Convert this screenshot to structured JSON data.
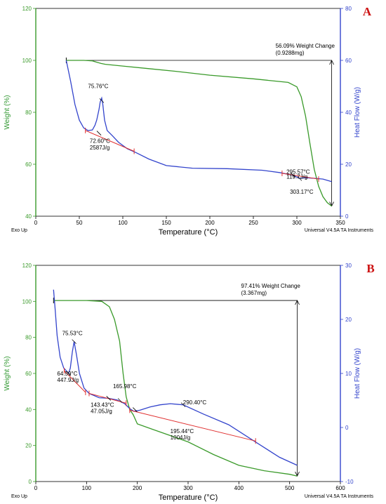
{
  "chart_data": [
    {
      "type": "line",
      "panel_label": "A",
      "xlabel": "Temperature (°C)",
      "ylabel_left": "Weight (%)",
      "ylabel_right": "Heat Flow (W/g)",
      "xlim": [
        0,
        350
      ],
      "x_ticks": [
        0,
        50,
        100,
        150,
        200,
        250,
        300,
        350
      ],
      "ylim_left": [
        40,
        120
      ],
      "y_ticks_left": [
        40,
        60,
        80,
        100,
        120
      ],
      "ylim_right": [
        0,
        80
      ],
      "y_ticks_right": [
        0,
        20,
        40,
        60,
        80
      ],
      "footer_left": "Exo Up",
      "footer_right": "Universal V4.5A TA Instruments",
      "weight_change_label": "56.09% Weight Change",
      "weight_change_sub": "(0.9288mg)",
      "weight_change_span": {
        "x": 340,
        "from": 100,
        "to": 43.91
      },
      "annotations": [
        {
          "text": "75.76°C",
          "x": 75.76,
          "y_hf": 44.5,
          "tx": 60,
          "ty_w": 89.3
        },
        {
          "text": "72.60°C",
          "x": 72.6,
          "y_hf": 32,
          "tx": 62,
          "ty_w": 68.2
        },
        {
          "text": "2587J/g",
          "x": 72.6,
          "y_hf": 32,
          "tx": 62,
          "ty_w": 65.7
        },
        {
          "text": "295.57°C",
          "x": 295.57,
          "y_hf": 15.8,
          "tx": 288,
          "ty_w": 56.4
        },
        {
          "text": "119.7J/g",
          "x": 295.57,
          "y_hf": 15.8,
          "tx": 288,
          "ty_w": 54.4
        },
        {
          "text": "303.17°C",
          "x": 303.17,
          "y_hf": 14.5,
          "tx": 292,
          "ty_w": 48.7
        }
      ],
      "series": [
        {
          "name": "Weight",
          "axis": "left",
          "color": "#3a9a2a",
          "x": [
            35,
            45,
            55,
            65,
            70,
            75,
            80,
            100,
            130,
            160,
            200,
            250,
            290,
            300,
            305,
            310,
            315,
            320,
            325,
            330,
            335,
            340
          ],
          "y": [
            100,
            100,
            100,
            99.8,
            99.3,
            98.8,
            98.5,
            97.8,
            96.8,
            95.8,
            94.3,
            92.9,
            91.5,
            89.8,
            86,
            78.5,
            68,
            58,
            51.5,
            47.5,
            45.2,
            43.9
          ]
        },
        {
          "name": "Heat Flow",
          "axis": "right",
          "color": "#3344cc",
          "x": [
            35,
            40,
            45,
            50,
            55,
            60,
            65,
            68,
            70,
            72.6,
            74,
            75.76,
            77,
            79,
            82,
            88,
            95,
            105,
            115,
            130,
            150,
            180,
            220,
            260,
            280,
            295,
            303,
            310,
            320,
            330,
            340
          ],
          "y": [
            60,
            52,
            43,
            37,
            34,
            33,
            33.2,
            35,
            37,
            41,
            44,
            45.5,
            43,
            37,
            33,
            31,
            28.5,
            26,
            24.5,
            22,
            19.5,
            18.5,
            18.3,
            17.7,
            16.8,
            15.8,
            14.6,
            14.8,
            14.6,
            14.3,
            13.3
          ]
        },
        {
          "name": "Baseline",
          "axis": "right",
          "color": "#e03030",
          "x": [
            57,
            113
          ],
          "y": [
            33,
            25
          ]
        },
        {
          "name": "Baseline",
          "axis": "right",
          "color": "#e03030",
          "x": [
            283,
            325
          ],
          "y": [
            16.5,
            14.3
          ]
        }
      ]
    },
    {
      "type": "line",
      "panel_label": "B",
      "xlabel": "Temperature (°C)",
      "ylabel_left": "Weight (%)",
      "ylabel_right": "Heat Flow (W/g)",
      "xlim": [
        0,
        600
      ],
      "x_ticks": [
        0,
        100,
        200,
        300,
        400,
        500,
        600
      ],
      "ylim_left": [
        0,
        120
      ],
      "y_ticks_left": [
        0,
        20,
        40,
        60,
        80,
        100,
        120
      ],
      "ylim_right": [
        -10,
        30
      ],
      "y_ticks_right": [
        -10,
        0,
        10,
        20,
        30
      ],
      "footer_left": "Exo Up",
      "footer_right": "Universal V4.5A TA Instruments",
      "weight_change_label": "97.41% Weight Change",
      "weight_change_sub": "(3.367mg)",
      "weight_change_span": {
        "x": 515,
        "from": 100.5,
        "to": 3.1
      },
      "annotations": [
        {
          "text": "75.53°C",
          "x": 75.53,
          "y_hf": 15.9,
          "tx": 52,
          "ty_w": 81.3
        },
        {
          "text": "64.59°C",
          "x": 64.59,
          "y_hf": 10,
          "tx": 42,
          "ty_w": 58.8
        },
        {
          "text": "447.9J/g",
          "x": 64.59,
          "y_hf": 10,
          "tx": 42,
          "ty_w": 55.3
        },
        {
          "text": "165.98°C",
          "x": 165.98,
          "y_hf": 5,
          "tx": 152,
          "ty_w": 51.8
        },
        {
          "text": "143.43°C",
          "x": 143.43,
          "y_hf": 5.4,
          "tx": 108,
          "ty_w": 41.4
        },
        {
          "text": "47.05J/g",
          "x": 143.43,
          "y_hf": 5.4,
          "tx": 108,
          "ty_w": 37.9
        },
        {
          "text": "290.40°C",
          "x": 290.4,
          "y_hf": 4.2,
          "tx": 290,
          "ty_w": 42.8
        },
        {
          "text": "195.44°C",
          "x": 195.44,
          "y_hf": 3.3,
          "tx": 265,
          "ty_w": 26.8
        },
        {
          "text": "1004J/g",
          "x": 195.44,
          "y_hf": 3.3,
          "tx": 265,
          "ty_w": 23.3
        }
      ],
      "series": [
        {
          "name": "Weight",
          "axis": "left",
          "color": "#3a9a2a",
          "x": [
            35,
            60,
            100,
            130,
            145,
            155,
            165,
            172,
            178,
            185,
            192,
            200,
            230,
            260,
            300,
            350,
            400,
            450,
            500,
            515
          ],
          "y": [
            100.5,
            100.5,
            100.5,
            100,
            97,
            90,
            78,
            60,
            47,
            40,
            37,
            32,
            29,
            26,
            22,
            15,
            9,
            6,
            4,
            3
          ]
        },
        {
          "name": "Heat Flow",
          "axis": "right",
          "color": "#3344cc",
          "x": [
            35,
            38,
            42,
            48,
            55,
            60,
            64.59,
            68,
            72,
            75.53,
            80,
            86,
            95,
            105,
            125,
            143,
            160,
            175,
            185,
            193,
            205,
            225,
            245,
            265,
            290,
            330,
            380,
            430,
            480,
            515
          ],
          "y": [
            25.5,
            22,
            17,
            13,
            11,
            10.5,
            10,
            11,
            14,
            15.9,
            13.5,
            10,
            7.3,
            6.3,
            5.5,
            5.4,
            5.1,
            4.4,
            3.5,
            3,
            3.2,
            3.8,
            4.2,
            4.4,
            4.2,
            2.5,
            0.5,
            -2.5,
            -5.5,
            -7
          ]
        },
        {
          "name": "Baseline",
          "axis": "right",
          "color": "#e03030",
          "x": [
            56,
            98
          ],
          "y": [
            10.5,
            6.5
          ]
        },
        {
          "name": "Baseline",
          "axis": "right",
          "color": "#e03030",
          "x": [
            105,
            178
          ],
          "y": [
            6.3,
            4.5
          ]
        },
        {
          "name": "Baseline",
          "axis": "right",
          "color": "#e03030",
          "x": [
            185,
            433
          ],
          "y": [
            3.2,
            -2.5
          ]
        }
      ]
    }
  ]
}
